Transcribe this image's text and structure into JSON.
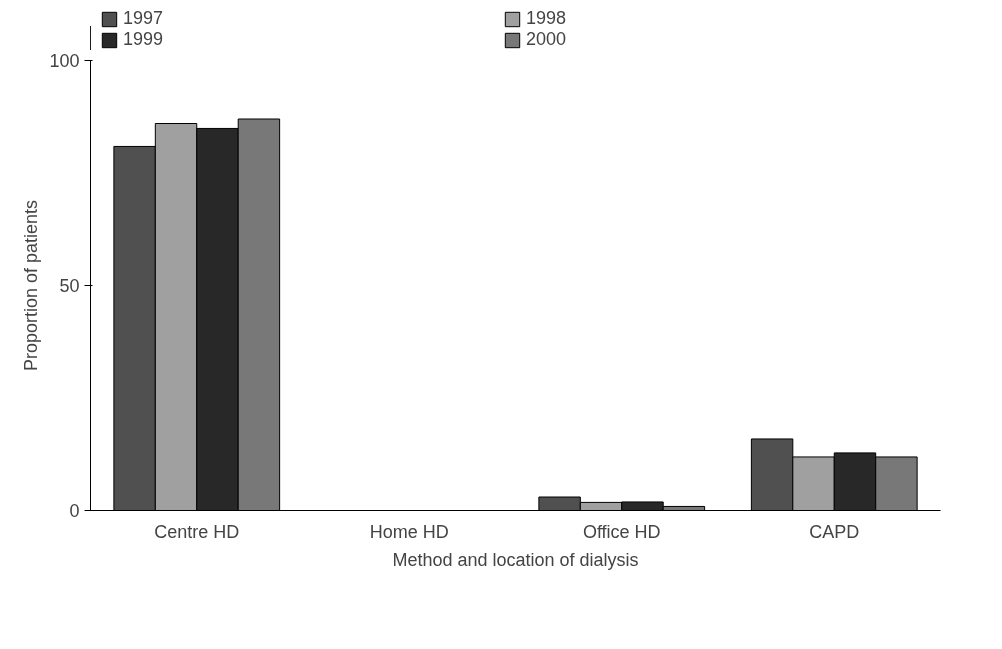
{
  "chart_data": {
    "type": "bar",
    "xlabel": "Method and location of dialysis",
    "ylabel": "Proportion of patients",
    "categories": [
      "Centre HD",
      "Home HD",
      "Office HD",
      "CAPD"
    ],
    "series": [
      {
        "name": "1997",
        "color": "#505050",
        "values": [
          80.9,
          0,
          3.0,
          15.9
        ]
      },
      {
        "name": "1998",
        "color": "#a0a0a0",
        "values": [
          86.0,
          0,
          1.8,
          11.9
        ]
      },
      {
        "name": "1999",
        "color": "#282828",
        "values": [
          84.9,
          0,
          1.9,
          12.8
        ]
      },
      {
        "name": "2000",
        "color": "#787878",
        "values": [
          87.0,
          0,
          0.9,
          11.9
        ]
      }
    ],
    "ylim": [
      0,
      100
    ],
    "yticks": [
      0,
      50,
      100
    ],
    "grid": false,
    "legend": "top"
  }
}
